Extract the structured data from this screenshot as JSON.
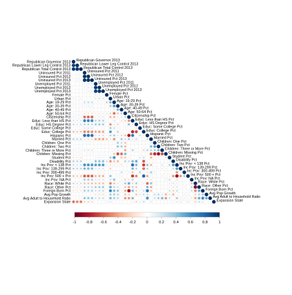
{
  "chart_data": {
    "type": "heatmap",
    "subtype": "correlation-matrix",
    "layout": "lower-triangle",
    "glyph": "circle",
    "variables": [
      "Republican Governor 2013",
      "Republican Lower Leg Control 2013",
      "Republican Total Control 2013",
      "Uninsured Pct 2011",
      "Uninsured Pct 2012",
      "Uninsured Pct 2013",
      "Unemployed Pct 2011",
      "Unemployed Pct 2012",
      "Unemployed Pct 2013",
      "Female Pct",
      "Urban Pct",
      "Age: 19-29 Pct",
      "Age: 30-39 Pct",
      "Age: 40-49 Pct",
      "Age: 50-64 Pct",
      "Citizenship Pct",
      "Educ: Less than HS Pct",
      "Educ: HS Degree Pct",
      "Educ: Some College Pct",
      "Educ: College Pct",
      "Hispanic Pct",
      "Married Pct",
      "Children: One Pct",
      "Children: Two Pct",
      "Children: Three or More Pct",
      "Children: Missing Pct",
      "Student Pct",
      "Disability Pct",
      "Inc Pov: < 138 Pct",
      "Inc Pov: 139-299 Pct",
      "Inc Pov: 300-499 Pct",
      "Inc Pov: 500 + Pct",
      "Inc Pov: NA Pct",
      "Race: White Pct",
      "Race: Other Pct",
      "Foreign Born Pct",
      "Avg Pop Growth",
      "Avg Adult to Household Ratio",
      "Expansion State"
    ],
    "diagonal": 1,
    "values_note": "",
    "lower_triangle": [
      [
        0.92
      ],
      [
        0.95,
        0.97
      ],
      [
        0.05,
        0.1,
        0.08
      ],
      [
        0.07,
        0.12,
        0.1,
        0.98
      ],
      [
        0.08,
        0.13,
        0.11,
        0.97,
        0.99
      ],
      [
        -0.05,
        -0.02,
        -0.04,
        0.15,
        0.18,
        0.2
      ],
      [
        -0.06,
        -0.03,
        -0.05,
        0.14,
        0.17,
        0.19,
        0.96
      ],
      [
        -0.07,
        -0.04,
        -0.06,
        0.12,
        0.15,
        0.18,
        0.94,
        0.98
      ],
      [
        0.02,
        0.0,
        0.01,
        -0.1,
        -0.08,
        -0.07,
        0.18,
        0.17,
        0.16
      ],
      [
        -0.15,
        -0.12,
        -0.14,
        0.05,
        0.04,
        0.06,
        0.2,
        0.22,
        0.21,
        0.1
      ],
      [
        -0.1,
        -0.08,
        -0.09,
        0.25,
        0.27,
        0.26,
        0.1,
        0.12,
        0.11,
        -0.3,
        0.45
      ],
      [
        -0.12,
        -0.1,
        -0.11,
        0.15,
        0.16,
        0.17,
        0.05,
        0.06,
        0.05,
        -0.1,
        0.35,
        0.55
      ],
      [
        0.05,
        0.04,
        0.05,
        -0.1,
        -0.09,
        -0.1,
        -0.05,
        -0.06,
        -0.05,
        0.05,
        0.1,
        -0.2,
        0.45
      ],
      [
        0.12,
        0.1,
        0.11,
        -0.2,
        -0.19,
        -0.2,
        -0.15,
        -0.16,
        -0.15,
        0.2,
        -0.25,
        -0.55,
        -0.3,
        0.3
      ],
      [
        0.15,
        0.12,
        0.14,
        -0.55,
        -0.57,
        -0.58,
        -0.15,
        -0.18,
        -0.2,
        0.05,
        -0.35,
        -0.35,
        -0.2,
        0.2,
        0.3
      ],
      [
        0.2,
        0.18,
        0.19,
        0.65,
        0.63,
        0.62,
        0.3,
        0.32,
        0.31,
        0.1,
        0.05,
        0.2,
        0.05,
        -0.2,
        -0.25,
        -0.45
      ],
      [
        0.25,
        0.22,
        0.24,
        0.3,
        0.29,
        0.28,
        0.35,
        0.36,
        0.35,
        0.05,
        -0.45,
        -0.2,
        -0.25,
        0.05,
        0.1,
        0.4,
        0.2
      ],
      [
        -0.1,
        -0.08,
        -0.09,
        0.2,
        0.21,
        0.22,
        0.05,
        0.06,
        0.07,
        -0.05,
        0.35,
        0.25,
        0.15,
        -0.1,
        -0.15,
        -0.1,
        0.1,
        -0.2
      ],
      [
        -0.3,
        -0.28,
        -0.29,
        -0.5,
        -0.49,
        -0.48,
        -0.4,
        -0.42,
        -0.41,
        0.0,
        0.55,
        0.1,
        0.3,
        0.1,
        0.05,
        -0.15,
        -0.75,
        -0.65,
        0.0
      ],
      [
        -0.05,
        -0.02,
        -0.03,
        0.75,
        0.74,
        0.73,
        0.2,
        0.22,
        0.23,
        -0.15,
        0.3,
        0.35,
        0.2,
        -0.25,
        -0.3,
        -0.8,
        0.7,
        0.0,
        0.25,
        -0.15
      ],
      [
        0.3,
        0.28,
        0.29,
        -0.2,
        -0.22,
        -0.23,
        -0.4,
        -0.42,
        -0.41,
        -0.3,
        -0.2,
        -0.45,
        -0.1,
        0.35,
        0.25,
        0.35,
        -0.2,
        0.25,
        0.05,
        0.1,
        -0.25
      ],
      [
        0.05,
        0.04,
        0.05,
        0.1,
        0.09,
        0.1,
        0.05,
        0.06,
        0.05,
        -0.05,
        0.05,
        0.1,
        0.35,
        0.25,
        -0.3,
        0.0,
        0.05,
        0.05,
        0.0,
        -0.05,
        0.1,
        0.2
      ],
      [
        0.1,
        0.08,
        0.09,
        0.05,
        0.04,
        0.05,
        -0.1,
        -0.09,
        -0.1,
        -0.05,
        0.1,
        0.0,
        0.4,
        0.35,
        -0.35,
        -0.05,
        0.0,
        0.0,
        -0.05,
        0.1,
        0.05,
        0.45,
        0.55
      ],
      [
        0.15,
        0.12,
        0.14,
        0.2,
        0.21,
        0.2,
        0.05,
        0.04,
        0.05,
        0.0,
        -0.1,
        0.15,
        0.2,
        0.05,
        -0.4,
        -0.1,
        0.3,
        0.1,
        -0.1,
        -0.25,
        0.3,
        0.3,
        0.35,
        0.45
      ],
      [
        -0.15,
        -0.12,
        -0.14,
        -0.1,
        -0.11,
        -0.12,
        0.1,
        0.11,
        0.1,
        0.05,
        -0.1,
        -0.3,
        -0.65,
        -0.55,
        0.45,
        0.0,
        0.05,
        0.0,
        0.1,
        0.05,
        -0.05,
        -0.55,
        -0.75,
        -0.85,
        -0.65
      ],
      [
        -0.2,
        -0.18,
        -0.19,
        0.05,
        0.04,
        0.05,
        0.15,
        0.16,
        0.15,
        0.1,
        0.35,
        0.6,
        -0.05,
        -0.3,
        -0.3,
        -0.15,
        0.05,
        -0.05,
        0.2,
        0.25,
        0.05,
        -0.35,
        -0.05,
        -0.15,
        -0.1,
        0.2
      ],
      [
        0.3,
        0.28,
        0.29,
        0.1,
        0.11,
        0.12,
        0.4,
        0.41,
        0.42,
        0.25,
        -0.45,
        -0.3,
        -0.35,
        0.0,
        0.3,
        0.25,
        0.45,
        0.5,
        -0.05,
        -0.6,
        -0.15,
        0.0,
        -0.1,
        -0.05,
        0.0,
        0.05,
        -0.15
      ],
      [
        0.25,
        0.22,
        0.24,
        0.6,
        0.59,
        0.58,
        0.55,
        0.56,
        0.57,
        0.15,
        -0.2,
        0.15,
        -0.15,
        -0.2,
        -0.1,
        -0.1,
        0.75,
        0.45,
        -0.1,
        -0.7,
        0.4,
        -0.35,
        0.05,
        -0.05,
        0.2,
        0.05,
        0.3,
        0.55
      ],
      [
        0.3,
        0.28,
        0.29,
        0.45,
        0.44,
        0.43,
        0.2,
        0.21,
        0.22,
        0.0,
        -0.25,
        0.0,
        0.0,
        0.05,
        -0.05,
        0.05,
        0.45,
        0.3,
        0.05,
        -0.55,
        0.3,
        0.0,
        0.1,
        0.15,
        0.15,
        -0.15,
        -0.05,
        0.25,
        0.55
      ],
      [
        -0.05,
        -0.04,
        -0.05,
        -0.1,
        -0.11,
        -0.1,
        -0.1,
        -0.11,
        -0.1,
        0.05,
        0.1,
        -0.05,
        0.05,
        0.25,
        0.1,
        0.15,
        -0.3,
        -0.05,
        0.3,
        0.1,
        -0.2,
        0.35,
        0.15,
        0.1,
        0.0,
        -0.1,
        -0.1,
        -0.05,
        -0.45,
        0.1
      ],
      [
        -0.3,
        -0.28,
        -0.29,
        -0.6,
        -0.59,
        -0.58,
        -0.35,
        -0.36,
        -0.37,
        -0.1,
        0.4,
        -0.05,
        0.15,
        0.15,
        0.05,
        -0.05,
        -0.7,
        -0.5,
        0.05,
        0.8,
        -0.4,
        0.1,
        0.0,
        -0.05,
        -0.15,
        0.1,
        0.15,
        -0.45,
        -0.85,
        -0.45,
        0.35
      ],
      [
        -0.05,
        -0.04,
        -0.05,
        0.35,
        0.34,
        0.33,
        0.2,
        0.21,
        0.22,
        -0.05,
        0.25,
        0.4,
        0.1,
        -0.15,
        -0.25,
        -0.2,
        0.3,
        0.0,
        0.1,
        0.0,
        0.2,
        -0.2,
        0.0,
        -0.05,
        0.0,
        0.15,
        0.25,
        0.0,
        0.2,
        0.05,
        -0.1,
        -0.1
      ],
      [
        0.25,
        0.22,
        0.24,
        -0.3,
        -0.31,
        -0.32,
        -0.3,
        -0.31,
        -0.32,
        -0.05,
        -0.5,
        -0.3,
        -0.2,
        0.1,
        0.35,
        0.5,
        -0.25,
        0.35,
        -0.1,
        -0.15,
        -0.55,
        0.4,
        -0.05,
        0.0,
        -0.05,
        0.05,
        -0.15,
        0.2,
        -0.15,
        0.05,
        0.1,
        -0.05,
        -0.3
      ],
      [
        -0.2,
        -0.18,
        -0.19,
        0.3,
        0.29,
        0.28,
        0.35,
        0.36,
        0.37,
        0.05,
        0.5,
        0.3,
        0.25,
        -0.1,
        -0.3,
        -0.4,
        0.3,
        -0.3,
        0.1,
        0.05,
        0.45,
        -0.4,
        0.05,
        0.0,
        0.1,
        -0.05,
        0.15,
        -0.2,
        0.2,
        -0.05,
        -0.1,
        0.0,
        0.3,
        -0.9
      ],
      [
        -0.2,
        -0.18,
        -0.19,
        0.35,
        0.34,
        0.33,
        0.25,
        0.26,
        0.27,
        -0.05,
        0.65,
        0.45,
        0.4,
        -0.15,
        -0.4,
        -0.85,
        0.45,
        -0.25,
        0.15,
        0.25,
        0.75,
        -0.3,
        0.0,
        0.1,
        -0.05,
        -0.05,
        0.25,
        -0.25,
        0.25,
        -0.05,
        -0.05,
        0.1,
        0.25,
        -0.5,
        0.5
      ],
      [
        0.05,
        0.04,
        0.05,
        0.05,
        0.06,
        0.07,
        -0.2,
        -0.21,
        -0.22,
        -0.1,
        0.35,
        0.35,
        0.3,
        0.05,
        -0.3,
        -0.25,
        0.05,
        -0.3,
        0.2,
        0.25,
        0.25,
        0.05,
        0.25,
        0.3,
        0.2,
        -0.35,
        0.2,
        -0.35,
        -0.1,
        -0.05,
        0.15,
        0.15,
        -0.05,
        -0.25,
        0.3,
        0.35
      ],
      [
        -0.1,
        -0.08,
        -0.09,
        0.4,
        0.39,
        0.38,
        0.25,
        0.26,
        0.27,
        -0.1,
        0.45,
        0.35,
        0.3,
        -0.1,
        -0.45,
        -0.45,
        0.45,
        -0.05,
        0.05,
        -0.05,
        0.6,
        -0.05,
        0.25,
        0.35,
        0.45,
        -0.45,
        0.25,
        -0.05,
        0.35,
        0.15,
        -0.15,
        -0.15,
        0.2,
        -0.4,
        0.5,
        0.65,
        0.5
      ],
      [
        -0.55,
        -0.5,
        -0.52,
        -0.25,
        -0.24,
        -0.23,
        0.05,
        0.06,
        0.07,
        0.15,
        0.2,
        0.05,
        0.05,
        0.05,
        0.0,
        -0.05,
        -0.15,
        -0.25,
        0.15,
        0.25,
        0.05,
        -0.2,
        -0.05,
        -0.05,
        -0.05,
        0.05,
        0.1,
        -0.15,
        -0.2,
        -0.2,
        0.1,
        0.2,
        0.05,
        -0.25,
        0.25,
        0.2,
        -0.05,
        0.05
      ]
    ],
    "colorbar": {
      "ticks": [
        "-1",
        "-0.8",
        "-0.6",
        "-0.4",
        "-0.2",
        "0",
        "0.2",
        "0.4",
        "0.6",
        "0.8",
        "1"
      ],
      "range": [
        -1,
        1
      ],
      "colors": [
        "#67001f",
        "#b2182b",
        "#d6604d",
        "#f4a582",
        "#fddbc7",
        "#ffffff",
        "#d1e5f0",
        "#92c5de",
        "#4393c3",
        "#2166ac",
        "#053061"
      ]
    },
    "title": "",
    "xlabel": "",
    "ylabel": "",
    "grid": true,
    "legend": "bottom"
  }
}
